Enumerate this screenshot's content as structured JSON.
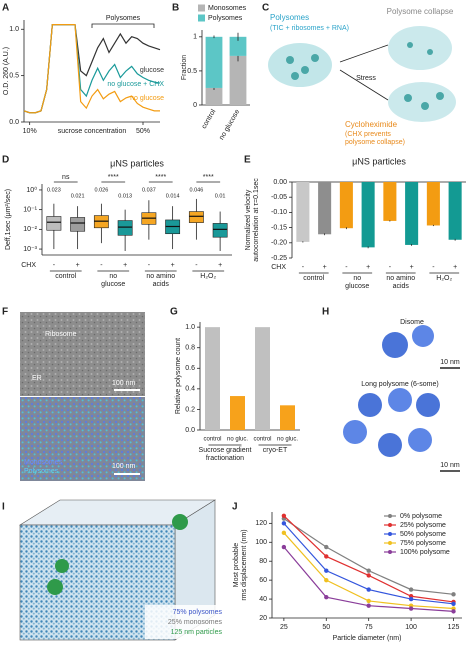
{
  "chart_data": [
    {
      "type": "line",
      "panel": "A",
      "ylabel": "O.D. 260 (A.U.)",
      "xlabel": "sucrose concentration",
      "annotation": "Polysomes",
      "legend": "inline",
      "x": [
        8,
        10,
        12,
        14,
        16,
        18,
        20,
        22,
        24,
        26,
        28,
        30,
        32,
        34,
        36,
        38,
        40,
        42,
        44,
        46,
        48,
        50,
        52,
        54,
        56
      ],
      "xlim": [
        8,
        56
      ],
      "xticks": [
        {
          "value": 10,
          "label": "10%"
        },
        {
          "value": 50,
          "label": "50%"
        }
      ],
      "ylim": [
        0,
        1.1
      ],
      "yticks": [
        {
          "value": 0,
          "label": "0.0"
        },
        0.5,
        {
          "value": 1,
          "label": "1.0"
        }
      ],
      "series": [
        {
          "name": "glucose",
          "color": "#333333",
          "values": [
            0.12,
            0.1,
            0.1,
            0.12,
            0.35,
            1.05,
            1.05,
            1.05,
            1.05,
            1.05,
            0.55,
            0.5,
            0.65,
            0.8,
            0.9,
            0.75,
            0.85,
            0.95,
            0.85,
            0.92,
            0.9,
            0.85,
            0.82,
            0.8,
            0.78
          ]
        },
        {
          "name": "no glucose + CHX",
          "color": "#1a9a9a",
          "values": [
            0.12,
            0.1,
            0.1,
            0.12,
            0.35,
            1.05,
            1.05,
            1.05,
            1.05,
            1.05,
            0.35,
            0.28,
            0.45,
            0.58,
            0.45,
            0.55,
            0.62,
            0.48,
            0.55,
            0.6,
            0.52,
            0.48,
            0.45,
            0.43,
            0.42
          ]
        },
        {
          "name": "no glucose",
          "color": "#f39c12",
          "values": [
            0.12,
            0.1,
            0.1,
            0.12,
            0.35,
            1.05,
            1.05,
            1.05,
            1.05,
            1.05,
            0.22,
            0.15,
            0.28,
            0.35,
            0.25,
            0.3,
            0.33,
            0.22,
            0.26,
            0.28,
            0.2,
            0.16,
            0.14,
            0.12,
            0.12
          ]
        }
      ]
    },
    {
      "type": "stacked_bar",
      "panel": "B",
      "ylabel": "Fraction",
      "categories": [
        "control",
        "no glucose"
      ],
      "ylim": [
        0,
        1.1
      ],
      "yticks": [
        0,
        0.5,
        1
      ],
      "series": [
        {
          "name": "Monosomes",
          "color": "#b5b5b5",
          "values": [
            0.25,
            0.72
          ],
          "errors": [
            0.03,
            0.08
          ]
        },
        {
          "name": "Polysomes",
          "color": "#5cc6c6",
          "values": [
            0.75,
            0.28
          ],
          "errors": [
            0.02,
            0.06
          ]
        }
      ]
    },
    {
      "type": "box",
      "panel": "D",
      "title": "μNS particles",
      "ylabel": "Deff,1sec (μm²/sec)",
      "log": true,
      "ylim": [
        0.0005,
        2
      ],
      "yticks": [
        {
          "value": 0.001,
          "label": "10⁻³"
        },
        {
          "value": 0.01,
          "label": "10⁻²"
        },
        {
          "value": 0.1,
          "label": "10⁻¹"
        },
        {
          "value": 1,
          "label": "10⁰"
        }
      ],
      "chx_label": "CHX",
      "chx": [
        "-",
        "+",
        "-",
        "+",
        "-",
        "+",
        "-",
        "+"
      ],
      "groups": [
        [
          "control"
        ],
        [
          "no",
          "glucose"
        ],
        [
          "no amino",
          "acids"
        ],
        [
          "H₂O₂"
        ]
      ],
      "significance": [
        "ns",
        "****",
        "****",
        "****"
      ],
      "colors": [
        "#bdbdbd",
        "#9e9e9e",
        "#f5a623",
        "#1a9999",
        "#f5a623",
        "#1a9999",
        "#f5a623",
        "#1a9999"
      ],
      "boxes": [
        {
          "median": 0.023,
          "q1": 0.009,
          "q3": 0.045,
          "whislo": 0.001,
          "whishi": 0.2
        },
        {
          "median": 0.021,
          "q1": 0.008,
          "q3": 0.04,
          "whislo": 0.001,
          "whishi": 0.15
        },
        {
          "median": 0.026,
          "q1": 0.012,
          "q3": 0.05,
          "whislo": 0.002,
          "whishi": 0.2
        },
        {
          "median": 0.013,
          "q1": 0.005,
          "q3": 0.028,
          "whislo": 0.0008,
          "whishi": 0.1
        },
        {
          "median": 0.037,
          "q1": 0.018,
          "q3": 0.07,
          "whislo": 0.003,
          "whishi": 0.3
        },
        {
          "median": 0.014,
          "q1": 0.006,
          "q3": 0.03,
          "whislo": 0.001,
          "whishi": 0.15
        },
        {
          "median": 0.046,
          "q1": 0.022,
          "q3": 0.08,
          "whislo": 0.003,
          "whishi": 0.35
        },
        {
          "median": 0.01,
          "q1": 0.004,
          "q3": 0.02,
          "whislo": 0.0008,
          "whishi": 0.08
        }
      ]
    },
    {
      "type": "bar",
      "panel": "E",
      "title": "μNS particles",
      "ylabel": [
        "Normalized velocity",
        "autocorrelation at τ=0.1sec"
      ],
      "ylim": [
        -0.25,
        0
      ],
      "yticks": [
        {
          "value": 0,
          "label": "0.00"
        },
        -0.05,
        {
          "value": -0.1,
          "label": "-0.10"
        },
        -0.15,
        {
          "value": -0.2,
          "label": "-0.20"
        },
        -0.25
      ],
      "chx_label": "CHX",
      "chx": [
        "-",
        "+",
        "-",
        "+",
        "-",
        "+",
        "-",
        "+"
      ],
      "groups": [
        [
          "control"
        ],
        [
          "no",
          "glucose"
        ],
        [
          "no amino",
          "acids"
        ],
        [
          "H₂O₂"
        ]
      ],
      "colors": [
        "#c8c8c8",
        "#8e8e8e",
        "#f39c12",
        "#139a93",
        "#f39c12",
        "#139a93",
        "#f39c12",
        "#139a93"
      ],
      "values": [
        -0.197,
        -0.172,
        -0.152,
        -0.215,
        -0.128,
        -0.207,
        -0.143,
        -0.19
      ],
      "errors": [
        0.002,
        0.003,
        0.003,
        0.003,
        0.002,
        0.003,
        0.002,
        0.003
      ]
    },
    {
      "type": "bar",
      "panel": "G",
      "ylabel": "Relative polysome count",
      "ylim": [
        0,
        1.05
      ],
      "yticks": [
        {
          "value": 0,
          "label": "0.0"
        },
        0.2,
        0.4,
        0.6,
        0.8,
        {
          "value": 1,
          "label": "1.0"
        }
      ],
      "categories": [
        "control",
        "no gluc.",
        "control",
        "no gluc."
      ],
      "groups": [
        [
          "Sucrose gradient",
          "fractionation"
        ],
        [
          "cryo-ET"
        ]
      ],
      "colors": [
        "#c0c0c0",
        "#f7a21b",
        "#c0c0c0",
        "#f7a21b"
      ],
      "values": [
        1,
        0.33,
        1,
        0.24
      ]
    },
    {
      "type": "line",
      "panel": "J",
      "ylabel": [
        "Most probable",
        "rms displacement (nm)"
      ],
      "xlabel": "Particle diameter (nm)",
      "legend": "upper right",
      "markers": true,
      "x": [
        25,
        50,
        75,
        100,
        125
      ],
      "xlim": [
        18,
        130
      ],
      "xticks": [
        25,
        50,
        75,
        100,
        125
      ],
      "ylim": [
        20,
        132
      ],
      "yticks": [
        20,
        40,
        60,
        80,
        100,
        120
      ],
      "series": [
        {
          "name": "0% polysome",
          "color": "#808080",
          "values": [
            125,
            95,
            70,
            50,
            45
          ]
        },
        {
          "name": "25% polysome",
          "color": "#e03030",
          "values": [
            128,
            85,
            65,
            43,
            37
          ]
        },
        {
          "name": "50% polysome",
          "color": "#3355dd",
          "values": [
            120,
            70,
            50,
            40,
            35
          ]
        },
        {
          "name": "75% polysome",
          "color": "#f0c020",
          "values": [
            110,
            60,
            38,
            33,
            30
          ]
        },
        {
          "name": "100% polysome",
          "color": "#8a3d9a",
          "values": [
            95,
            42,
            33,
            30,
            27
          ]
        }
      ]
    }
  ],
  "figures": [
    {
      "panel": "C",
      "labels": [
        "Polysomes",
        "(TIC + ribosomes + RNA)",
        "Polysome collapse",
        "Stress",
        "Cycloheximide",
        "(CHX prevents",
        "polysome collapse)"
      ]
    },
    {
      "panel": "F",
      "labels": [
        "Ribosome",
        "ER",
        "100 nm",
        "Monosomes",
        "Polysomes",
        "100 nm"
      ]
    },
    {
      "panel": "H",
      "labels": [
        "Disome",
        "10 nm",
        "Long polysome (6-some)",
        "10 nm"
      ]
    },
    {
      "panel": "I",
      "labels": [
        "75% polysomes",
        "25% monosomes",
        "125 nm particles"
      ]
    }
  ]
}
